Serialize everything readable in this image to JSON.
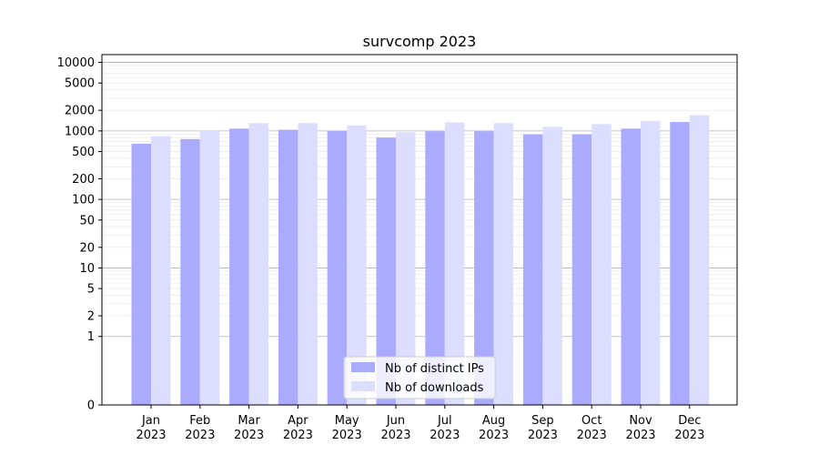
{
  "chart_data": {
    "type": "bar",
    "title": "survcomp 2023",
    "xlabel": "",
    "ylabel": "",
    "yscale": "symlog",
    "ylim": [
      0,
      13000
    ],
    "yticks": [
      0,
      1,
      2,
      5,
      10,
      20,
      50,
      100,
      200,
      500,
      1000,
      2000,
      5000,
      10000
    ],
    "grid": true,
    "legend_position": "lower-center",
    "categories": [
      {
        "month": "Jan",
        "year": "2023"
      },
      {
        "month": "Feb",
        "year": "2023"
      },
      {
        "month": "Mar",
        "year": "2023"
      },
      {
        "month": "Apr",
        "year": "2023"
      },
      {
        "month": "May",
        "year": "2023"
      },
      {
        "month": "Jun",
        "year": "2023"
      },
      {
        "month": "Jul",
        "year": "2023"
      },
      {
        "month": "Aug",
        "year": "2023"
      },
      {
        "month": "Sep",
        "year": "2023"
      },
      {
        "month": "Oct",
        "year": "2023"
      },
      {
        "month": "Nov",
        "year": "2023"
      },
      {
        "month": "Dec",
        "year": "2023"
      }
    ],
    "series": [
      {
        "name": "Nb of distinct IPs",
        "color": "#aaaaff",
        "values": [
          650,
          760,
          1080,
          1040,
          1000,
          800,
          990,
          990,
          890,
          890,
          1080,
          1350
        ]
      },
      {
        "name": "Nb of downloads",
        "color": "#ddddff",
        "values": [
          840,
          1000,
          1300,
          1300,
          1200,
          960,
          1330,
          1300,
          1150,
          1260,
          1400,
          1700
        ]
      }
    ]
  }
}
